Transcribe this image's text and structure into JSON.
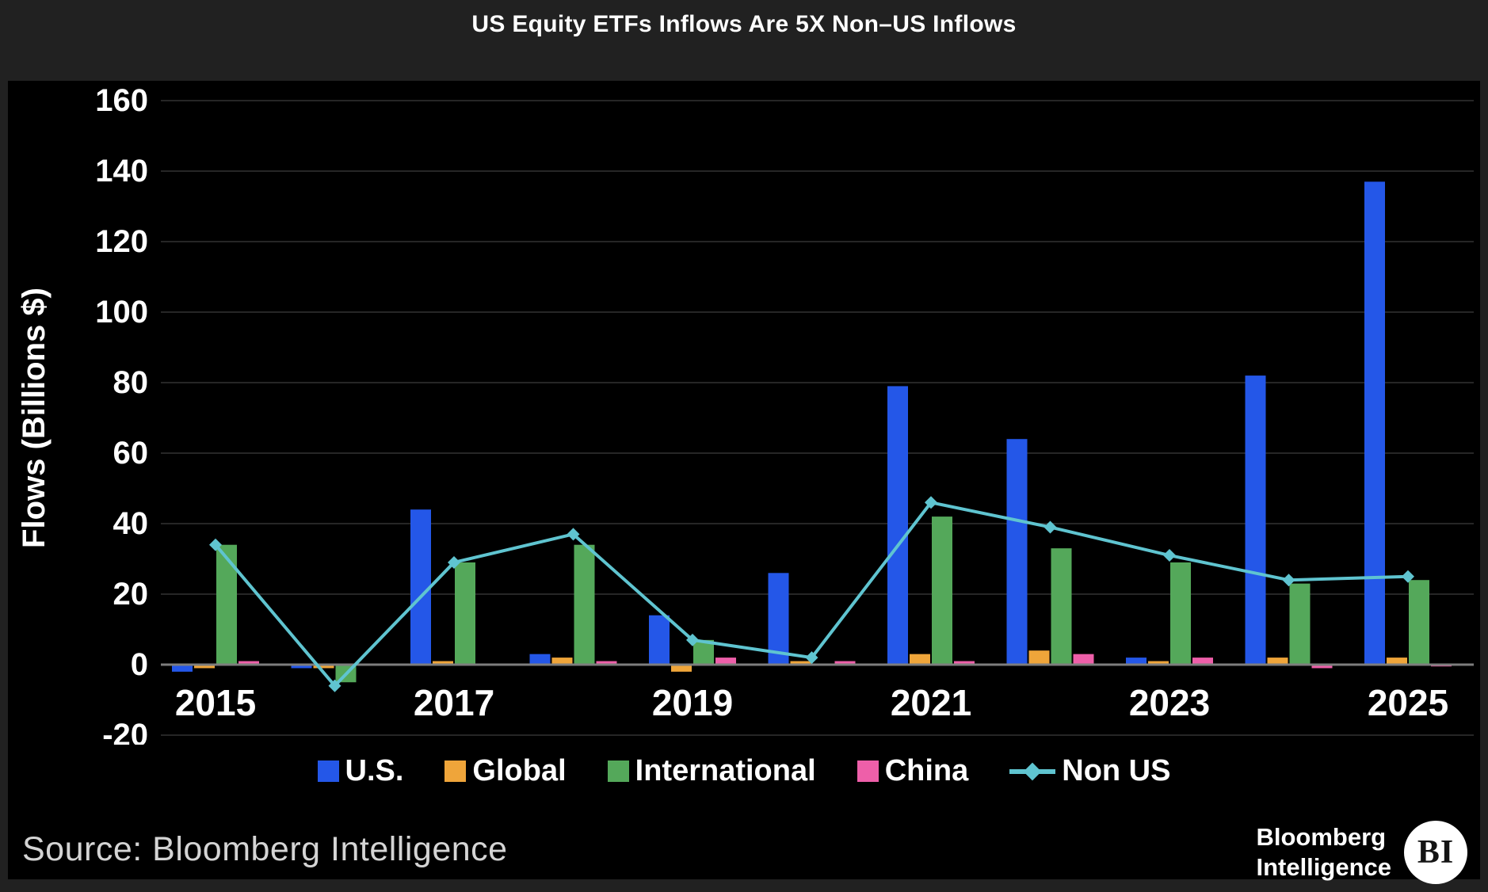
{
  "header": {
    "title": "US Equity ETFs Inflows Are 5X Non–US Inflows"
  },
  "colors": {
    "us": "#2457e8",
    "global": "#efa53a",
    "international": "#54a85a",
    "china": "#ee5fa9",
    "non_us": "#5fc4d0",
    "panel_background": "#000000",
    "frame_background": "#212121",
    "grid": "#262626",
    "axis": "#7d7d7d",
    "text": "#ffffff",
    "source_text": "#d4d4d4"
  },
  "legend": {
    "items": [
      {
        "label": "U.S.",
        "color_key": "us",
        "marker": "square"
      },
      {
        "label": "Global",
        "color_key": "global",
        "marker": "square"
      },
      {
        "label": "International",
        "color_key": "international",
        "marker": "square"
      },
      {
        "label": "China",
        "color_key": "china",
        "marker": "square"
      },
      {
        "label": "Non US",
        "color_key": "non_us",
        "marker": "line-diamond"
      }
    ]
  },
  "chart_data": {
    "type": "bar",
    "title": "US Equity ETFs Inflows Are 5X Non–US Inflows",
    "xlabel": "",
    "ylabel": "Flows (Billions $)",
    "categories": [
      2015,
      2016,
      2017,
      2018,
      2019,
      2020,
      2021,
      2022,
      2023,
      2024,
      2025
    ],
    "x_tick_labels": [
      "2015",
      "2017",
      "2019",
      "2021",
      "2023",
      "2025"
    ],
    "y_ticks": [
      160,
      140,
      120,
      100,
      80,
      60,
      40,
      20,
      0,
      -20
    ],
    "ylim": [
      -20,
      160
    ],
    "grid": "horizontal",
    "legend_position": "bottom",
    "series": [
      {
        "name": "U.S.",
        "color_key": "us",
        "values": [
          -2,
          -1,
          44,
          3,
          14,
          26,
          79,
          64,
          2,
          82,
          137
        ]
      },
      {
        "name": "Global",
        "color_key": "global",
        "values": [
          -1,
          -1,
          1,
          2,
          -2,
          1,
          3,
          4,
          1,
          2,
          2
        ]
      },
      {
        "name": "International",
        "color_key": "international",
        "values": [
          34,
          -5,
          29,
          34,
          7,
          0,
          42,
          33,
          29,
          23,
          24
        ]
      },
      {
        "name": "China",
        "color_key": "china",
        "values": [
          1,
          0,
          0,
          1,
          2,
          1,
          1,
          3,
          2,
          -1,
          -0.5
        ]
      }
    ],
    "line_series": {
      "name": "Non US",
      "color_key": "non_us",
      "values": [
        34,
        -6,
        29,
        37,
        7,
        2,
        46,
        39,
        31,
        24,
        25
      ]
    }
  },
  "footer": {
    "source": "Source: Bloomberg Intelligence",
    "logo_line1": "Bloomberg",
    "logo_line2": "Intelligence",
    "logo_badge": "BI"
  }
}
